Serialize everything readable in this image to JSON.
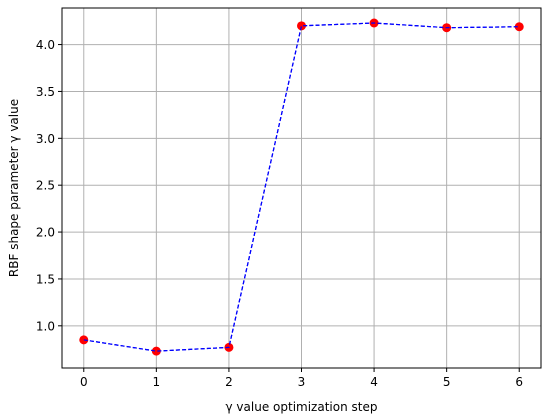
{
  "chart_data": {
    "type": "line",
    "title": "",
    "xlabel": "γ value optimization step",
    "ylabel": "RBF shape parameter γ value",
    "x": [
      0,
      1,
      2,
      3,
      4,
      5,
      6
    ],
    "series": [
      {
        "values": [
          0.85,
          0.73,
          0.77,
          4.2,
          4.23,
          4.18,
          4.19
        ],
        "line_color": "#0000ff",
        "line_style": "dashed",
        "marker_color": "#ff0000",
        "marker": "circle"
      }
    ],
    "xticks": [
      0,
      1,
      2,
      3,
      4,
      5,
      6
    ],
    "xtick_labels": [
      "0",
      "1",
      "2",
      "3",
      "4",
      "5",
      "6"
    ],
    "yticks": [
      1.0,
      1.5,
      2.0,
      2.5,
      3.0,
      3.5,
      4.0
    ],
    "ytick_labels": [
      "1.0",
      "1.5",
      "2.0",
      "2.5",
      "3.0",
      "3.5",
      "4.0"
    ],
    "xlim": [
      -0.3,
      6.3
    ],
    "ylim": [
      0.55,
      4.39
    ],
    "grid": true,
    "legend": false
  }
}
